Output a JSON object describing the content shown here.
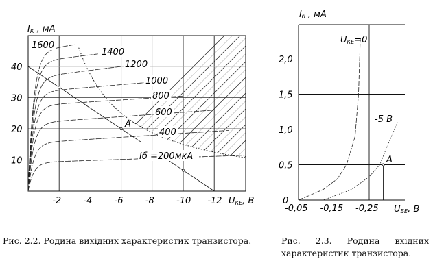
{
  "chart_data": [
    {
      "type": "line",
      "caption": "Рис. 2.2. Родина вихідних характеристик транзистора.",
      "xlabel": "U",
      "xlabel_sub": "КЕ",
      "xlabel_unit": ", В",
      "ylabel": "I",
      "ylabel_sub": "К",
      "ylabel_unit": " , мА",
      "xlim": [
        0,
        -14
      ],
      "ylim": [
        0,
        46
      ],
      "xticks": [
        "-2",
        "-4",
        "-6",
        "-8",
        "-10",
        "-12"
      ],
      "yticks": [
        "10",
        "20",
        "30",
        "40"
      ],
      "grid": true,
      "series": [
        {
          "name": "Iб =200мкА",
          "plateau": [
            [
              -2,
              9.5
            ],
            [
              -14,
              11.5
            ]
          ]
        },
        {
          "name": "400",
          "plateau": [
            [
              -2,
              16
            ],
            [
              -13,
              19.5
            ]
          ]
        },
        {
          "name": "600",
          "plateau": [
            [
              -2,
              22.5
            ],
            [
              -12,
              26
            ]
          ]
        },
        {
          "name": "800",
          "plateau": [
            [
              -2,
              28
            ],
            [
              -10,
              30.5
            ]
          ]
        },
        {
          "name": "1000",
          "plateau": [
            [
              -2,
              32.5
            ],
            [
              -8,
              35
            ]
          ]
        },
        {
          "name": "1200",
          "plateau": [
            [
              -2,
              37.5
            ],
            [
              -6,
              40
            ]
          ]
        },
        {
          "name": "1400",
          "plateau": [
            [
              -2,
              42.5
            ],
            [
              -4.5,
              44
            ]
          ]
        },
        {
          "name": "1600",
          "plateau": [
            [
              -1,
              45.5
            ],
            [
              -3,
              47
            ]
          ]
        }
      ],
      "load_line": {
        "from": [
          0,
          40
        ],
        "to": [
          -12,
          0
        ]
      },
      "operating_point": {
        "label": "A",
        "x": -6,
        "y": 20
      },
      "max_power_mW": 150
    },
    {
      "type": "line",
      "caption": "Рис. 2.3. Родина вхідних характеристик транзистора.",
      "xlabel": "U",
      "xlabel_sub": "БЕ",
      "xlabel_unit": ", В",
      "ylabel": "I",
      "ylabel_sub": "б",
      "ylabel_unit": " , мА",
      "xticks": [
        "-0,05",
        "-0,15",
        "-0,25"
      ],
      "yticks": [
        "0",
        "0,5",
        "1,0",
        "1,5",
        "2,0"
      ],
      "series": [
        {
          "name": "U",
          "name_sub": "КЕ",
          "name_suffix": "=0",
          "points": [
            [
              -0.05,
              0
            ],
            [
              -0.12,
              0.15
            ],
            [
              -0.16,
              0.3
            ],
            [
              -0.186,
              0.5
            ],
            [
              -0.21,
              0.9
            ],
            [
              -0.22,
              1.5
            ],
            [
              -0.225,
              2.3
            ]
          ]
        },
        {
          "name": "-5 В",
          "points": [
            [
              -0.12,
              0
            ],
            [
              -0.2,
              0.15
            ],
            [
              -0.25,
              0.33
            ],
            [
              -0.28,
              0.5
            ],
            [
              -0.3,
              0.75
            ],
            [
              -0.33,
              1.1
            ]
          ]
        }
      ],
      "operating_point": {
        "label": "A",
        "x": -0.29,
        "y": 0.5
      }
    }
  ]
}
